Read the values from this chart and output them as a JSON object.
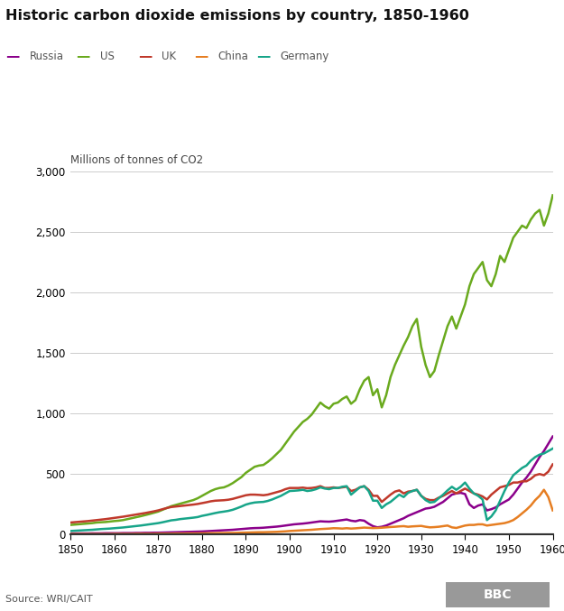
{
  "title": "Historic carbon dioxide emissions by country, 1850-1960",
  "ylabel": "Millions of tonnes of CO2",
  "source": "Source: WRI/CAIT",
  "xlim": [
    1850,
    1960
  ],
  "ylim": [
    0,
    3000
  ],
  "yticks": [
    0,
    500,
    1000,
    1500,
    2000,
    2500,
    3000
  ],
  "xticks": [
    1850,
    1860,
    1870,
    1880,
    1890,
    1900,
    1910,
    1920,
    1930,
    1940,
    1950,
    1960
  ],
  "colors": {
    "Russia": "#8B008B",
    "US": "#6aaa1e",
    "UK": "#c0392b",
    "China": "#e67e22",
    "Germany": "#17a589"
  },
  "series": {
    "Russia": {
      "years": [
        1850,
        1851,
        1852,
        1853,
        1854,
        1855,
        1856,
        1857,
        1858,
        1859,
        1860,
        1861,
        1862,
        1863,
        1864,
        1865,
        1866,
        1867,
        1868,
        1869,
        1870,
        1871,
        1872,
        1873,
        1874,
        1875,
        1876,
        1877,
        1878,
        1879,
        1880,
        1881,
        1882,
        1883,
        1884,
        1885,
        1886,
        1887,
        1888,
        1889,
        1890,
        1891,
        1892,
        1893,
        1894,
        1895,
        1896,
        1897,
        1898,
        1899,
        1900,
        1901,
        1902,
        1903,
        1904,
        1905,
        1906,
        1907,
        1908,
        1909,
        1910,
        1911,
        1912,
        1913,
        1914,
        1915,
        1916,
        1917,
        1918,
        1919,
        1920,
        1921,
        1922,
        1923,
        1924,
        1925,
        1926,
        1927,
        1928,
        1929,
        1930,
        1931,
        1932,
        1933,
        1934,
        1935,
        1936,
        1937,
        1938,
        1939,
        1940,
        1941,
        1942,
        1943,
        1944,
        1945,
        1946,
        1947,
        1948,
        1949,
        1950,
        1951,
        1952,
        1953,
        1954,
        1955,
        1956,
        1957,
        1958,
        1959,
        1960
      ],
      "values": [
        10,
        10,
        10,
        10,
        10,
        11,
        11,
        11,
        12,
        12,
        12,
        12,
        13,
        13,
        13,
        14,
        14,
        15,
        15,
        16,
        16,
        17,
        18,
        19,
        20,
        21,
        22,
        23,
        24,
        25,
        26,
        28,
        30,
        32,
        34,
        36,
        38,
        40,
        43,
        46,
        49,
        52,
        54,
        55,
        57,
        60,
        63,
        66,
        70,
        75,
        80,
        85,
        88,
        91,
        95,
        100,
        105,
        110,
        108,
        107,
        110,
        115,
        120,
        125,
        115,
        110,
        120,
        115,
        90,
        70,
        60,
        65,
        75,
        90,
        105,
        120,
        135,
        155,
        170,
        185,
        200,
        215,
        220,
        230,
        250,
        270,
        300,
        330,
        340,
        345,
        335,
        250,
        220,
        240,
        250,
        200,
        210,
        225,
        250,
        270,
        290,
        330,
        380,
        430,
        470,
        520,
        580,
        640,
        690,
        750,
        810
      ]
    },
    "US": {
      "years": [
        1850,
        1851,
        1852,
        1853,
        1854,
        1855,
        1856,
        1857,
        1858,
        1859,
        1860,
        1861,
        1862,
        1863,
        1864,
        1865,
        1866,
        1867,
        1868,
        1869,
        1870,
        1871,
        1872,
        1873,
        1874,
        1875,
        1876,
        1877,
        1878,
        1879,
        1880,
        1881,
        1882,
        1883,
        1884,
        1885,
        1886,
        1887,
        1888,
        1889,
        1890,
        1891,
        1892,
        1893,
        1894,
        1895,
        1896,
        1897,
        1898,
        1899,
        1900,
        1901,
        1902,
        1903,
        1904,
        1905,
        1906,
        1907,
        1908,
        1909,
        1910,
        1911,
        1912,
        1913,
        1914,
        1915,
        1916,
        1917,
        1918,
        1919,
        1920,
        1921,
        1922,
        1923,
        1924,
        1925,
        1926,
        1927,
        1928,
        1929,
        1930,
        1931,
        1932,
        1933,
        1934,
        1935,
        1936,
        1937,
        1938,
        1939,
        1940,
        1941,
        1942,
        1943,
        1944,
        1945,
        1946,
        1947,
        1948,
        1949,
        1950,
        1951,
        1952,
        1953,
        1954,
        1955,
        1956,
        1957,
        1958,
        1959,
        1960
      ],
      "values": [
        80,
        83,
        86,
        89,
        92,
        95,
        100,
        102,
        104,
        108,
        112,
        115,
        120,
        128,
        136,
        144,
        152,
        161,
        170,
        180,
        190,
        205,
        220,
        235,
        245,
        255,
        265,
        275,
        285,
        300,
        320,
        340,
        360,
        375,
        385,
        390,
        405,
        425,
        450,
        475,
        510,
        535,
        560,
        570,
        575,
        600,
        630,
        665,
        700,
        750,
        800,
        850,
        890,
        930,
        955,
        990,
        1040,
        1090,
        1060,
        1040,
        1080,
        1090,
        1120,
        1140,
        1080,
        1110,
        1200,
        1270,
        1300,
        1150,
        1200,
        1050,
        1150,
        1300,
        1400,
        1480,
        1560,
        1630,
        1720,
        1780,
        1550,
        1400,
        1300,
        1350,
        1480,
        1600,
        1720,
        1800,
        1700,
        1800,
        1900,
        2050,
        2150,
        2200,
        2250,
        2100,
        2050,
        2150,
        2300,
        2250,
        2350,
        2450,
        2500,
        2550,
        2530,
        2600,
        2650,
        2680,
        2550,
        2650,
        2800
      ]
    },
    "UK": {
      "years": [
        1850,
        1851,
        1852,
        1853,
        1854,
        1855,
        1856,
        1857,
        1858,
        1859,
        1860,
        1861,
        1862,
        1863,
        1864,
        1865,
        1866,
        1867,
        1868,
        1869,
        1870,
        1871,
        1872,
        1873,
        1874,
        1875,
        1876,
        1877,
        1878,
        1879,
        1880,
        1881,
        1882,
        1883,
        1884,
        1885,
        1886,
        1887,
        1888,
        1889,
        1890,
        1891,
        1892,
        1893,
        1894,
        1895,
        1896,
        1897,
        1898,
        1899,
        1900,
        1901,
        1902,
        1903,
        1904,
        1905,
        1906,
        1907,
        1908,
        1909,
        1910,
        1911,
        1912,
        1913,
        1914,
        1915,
        1916,
        1917,
        1918,
        1919,
        1920,
        1921,
        1922,
        1923,
        1924,
        1925,
        1926,
        1927,
        1928,
        1929,
        1930,
        1931,
        1932,
        1933,
        1934,
        1935,
        1936,
        1937,
        1938,
        1939,
        1940,
        1941,
        1942,
        1943,
        1944,
        1945,
        1946,
        1947,
        1948,
        1949,
        1950,
        1951,
        1952,
        1953,
        1954,
        1955,
        1956,
        1957,
        1958,
        1959,
        1960
      ],
      "values": [
        100,
        103,
        106,
        109,
        112,
        116,
        120,
        124,
        128,
        133,
        138,
        143,
        148,
        154,
        160,
        166,
        172,
        178,
        185,
        192,
        200,
        210,
        220,
        228,
        232,
        236,
        240,
        244,
        248,
        253,
        260,
        267,
        275,
        280,
        282,
        284,
        288,
        295,
        305,
        315,
        325,
        330,
        330,
        328,
        325,
        330,
        340,
        350,
        360,
        375,
        385,
        385,
        385,
        388,
        383,
        385,
        390,
        400,
        385,
        385,
        390,
        385,
        390,
        395,
        360,
        370,
        390,
        400,
        370,
        320,
        320,
        270,
        300,
        330,
        355,
        365,
        340,
        355,
        360,
        370,
        320,
        295,
        285,
        285,
        305,
        320,
        340,
        360,
        340,
        360,
        380,
        360,
        340,
        330,
        315,
        290,
        330,
        360,
        390,
        400,
        410,
        430,
        430,
        440,
        440,
        460,
        490,
        500,
        490,
        520,
        580
      ]
    },
    "China": {
      "years": [
        1850,
        1851,
        1852,
        1853,
        1854,
        1855,
        1856,
        1857,
        1858,
        1859,
        1860,
        1861,
        1862,
        1863,
        1864,
        1865,
        1866,
        1867,
        1868,
        1869,
        1870,
        1871,
        1872,
        1873,
        1874,
        1875,
        1876,
        1877,
        1878,
        1879,
        1880,
        1881,
        1882,
        1883,
        1884,
        1885,
        1886,
        1887,
        1888,
        1889,
        1890,
        1891,
        1892,
        1893,
        1894,
        1895,
        1896,
        1897,
        1898,
        1899,
        1900,
        1901,
        1902,
        1903,
        1904,
        1905,
        1906,
        1907,
        1908,
        1909,
        1910,
        1911,
        1912,
        1913,
        1914,
        1915,
        1916,
        1917,
        1918,
        1919,
        1920,
        1921,
        1922,
        1923,
        1924,
        1925,
        1926,
        1927,
        1928,
        1929,
        1930,
        1931,
        1932,
        1933,
        1934,
        1935,
        1936,
        1937,
        1938,
        1939,
        1940,
        1941,
        1942,
        1943,
        1944,
        1945,
        1946,
        1947,
        1948,
        1949,
        1950,
        1951,
        1952,
        1953,
        1954,
        1955,
        1956,
        1957,
        1958,
        1959,
        1960
      ],
      "values": [
        5,
        5,
        5,
        5,
        5,
        5,
        5,
        5,
        5,
        5,
        6,
        6,
        6,
        6,
        6,
        7,
        7,
        7,
        7,
        7,
        8,
        8,
        8,
        8,
        9,
        9,
        9,
        10,
        10,
        10,
        11,
        11,
        12,
        12,
        13,
        13,
        14,
        14,
        15,
        16,
        17,
        18,
        19,
        20,
        20,
        21,
        22,
        23,
        25,
        27,
        30,
        32,
        34,
        36,
        38,
        40,
        43,
        46,
        48,
        50,
        53,
        52,
        50,
        53,
        50,
        52,
        55,
        58,
        56,
        54,
        55,
        57,
        60,
        63,
        65,
        68,
        70,
        65,
        68,
        70,
        72,
        65,
        60,
        62,
        65,
        70,
        75,
        60,
        55,
        65,
        75,
        80,
        80,
        85,
        85,
        75,
        80,
        85,
        90,
        95,
        105,
        120,
        145,
        175,
        205,
        240,
        285,
        320,
        370,
        310,
        200
      ]
    },
    "Germany": {
      "years": [
        1850,
        1851,
        1852,
        1853,
        1854,
        1855,
        1856,
        1857,
        1858,
        1859,
        1860,
        1861,
        1862,
        1863,
        1864,
        1865,
        1866,
        1867,
        1868,
        1869,
        1870,
        1871,
        1872,
        1873,
        1874,
        1875,
        1876,
        1877,
        1878,
        1879,
        1880,
        1881,
        1882,
        1883,
        1884,
        1885,
        1886,
        1887,
        1888,
        1889,
        1890,
        1891,
        1892,
        1893,
        1894,
        1895,
        1896,
        1897,
        1898,
        1899,
        1900,
        1901,
        1902,
        1903,
        1904,
        1905,
        1906,
        1907,
        1908,
        1909,
        1910,
        1911,
        1912,
        1913,
        1914,
        1915,
        1916,
        1917,
        1918,
        1919,
        1920,
        1921,
        1922,
        1923,
        1924,
        1925,
        1926,
        1927,
        1928,
        1929,
        1930,
        1931,
        1932,
        1933,
        1934,
        1935,
        1936,
        1937,
        1938,
        1939,
        1940,
        1941,
        1942,
        1943,
        1944,
        1945,
        1946,
        1947,
        1948,
        1949,
        1950,
        1951,
        1952,
        1953,
        1954,
        1955,
        1956,
        1957,
        1958,
        1959,
        1960
      ],
      "values": [
        30,
        32,
        34,
        36,
        38,
        40,
        43,
        46,
        48,
        50,
        53,
        56,
        59,
        63,
        67,
        71,
        75,
        80,
        85,
        90,
        95,
        102,
        110,
        118,
        122,
        128,
        132,
        136,
        140,
        145,
        155,
        162,
        170,
        178,
        185,
        190,
        196,
        205,
        218,
        232,
        248,
        258,
        265,
        268,
        270,
        278,
        290,
        305,
        320,
        340,
        360,
        362,
        365,
        370,
        360,
        365,
        375,
        390,
        380,
        375,
        385,
        385,
        395,
        400,
        330,
        360,
        390,
        400,
        360,
        280,
        280,
        220,
        250,
        270,
        300,
        330,
        310,
        345,
        360,
        370,
        320,
        285,
        265,
        270,
        300,
        330,
        365,
        395,
        370,
        395,
        430,
        380,
        340,
        320,
        290,
        120,
        150,
        200,
        280,
        360,
        430,
        490,
        520,
        550,
        570,
        610,
        640,
        660,
        670,
        690,
        710
      ]
    }
  },
  "background_color": "#ffffff",
  "grid_color": "#cccccc",
  "line_width": 1.8,
  "legend_order": [
    "Russia",
    "US",
    "UK",
    "China",
    "Germany"
  ]
}
